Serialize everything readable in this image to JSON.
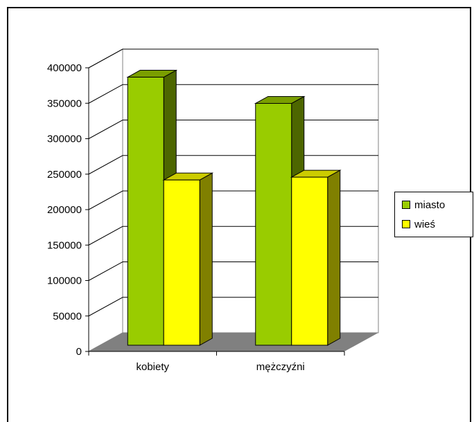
{
  "chart_data": {
    "type": "bar",
    "categories": [
      "kobiety",
      "mężczyźni"
    ],
    "series": [
      {
        "name": "miasto",
        "values": [
          378000,
          341000
        ],
        "color": "#99CC00"
      },
      {
        "name": "wieś",
        "values": [
          233000,
          237000
        ],
        "color": "#FFFF00"
      }
    ],
    "ylim": [
      0,
      400000
    ],
    "yticks": [
      "0",
      "50000",
      "100000",
      "150000",
      "200000",
      "250000",
      "300000",
      "350000",
      "400000"
    ],
    "grid": true,
    "legend_position": "right",
    "style": "3d-clustered-column",
    "colors": {
      "floor": "#808080",
      "miasto_side": "#4D6600",
      "wies_side": "#808000"
    }
  }
}
